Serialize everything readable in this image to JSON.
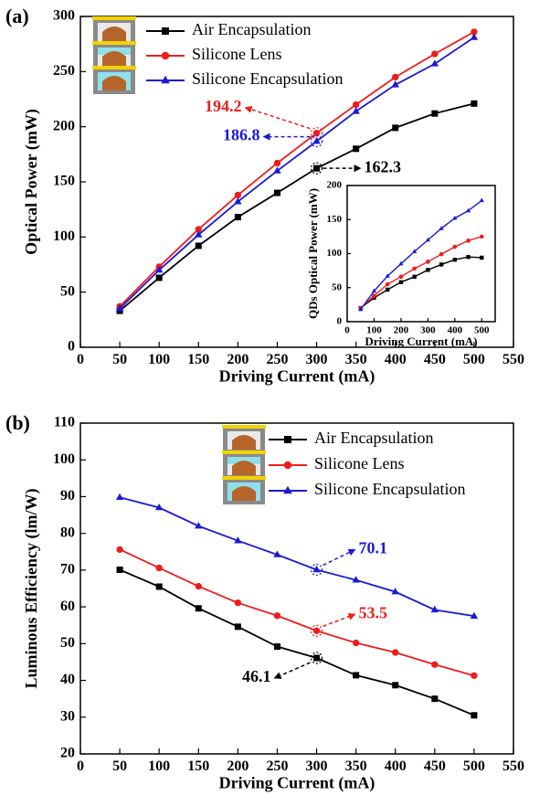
{
  "chart_data": [
    {
      "type": "line",
      "panel_label": "(a)",
      "x_label": "Driving Current (mA)",
      "y_label": "Optical Power (mW)",
      "x": [
        50,
        100,
        150,
        200,
        250,
        300,
        350,
        400,
        450,
        500
      ],
      "series": [
        {
          "name": "Air Encapsulation",
          "color": "#000000",
          "marker": "square",
          "values": [
            33,
            63,
            92,
            118,
            140,
            162.3,
            180,
            199,
            212,
            221
          ]
        },
        {
          "name": "Silicone Lens",
          "color": "#ee1c1c",
          "marker": "circle",
          "values": [
            37,
            73,
            107,
            138,
            167,
            194.2,
            220,
            245,
            266,
            286
          ]
        },
        {
          "name": "Silicone Encapsulation",
          "color": "#1a1ad6",
          "marker": "triangle",
          "values": [
            35,
            70,
            102,
            132,
            160,
            186.8,
            214,
            238,
            257,
            281
          ]
        }
      ],
      "xlim": [
        0,
        550
      ],
      "xticks": [
        0,
        50,
        100,
        150,
        200,
        250,
        300,
        350,
        400,
        450,
        500,
        550
      ],
      "ylim": [
        0,
        300
      ],
      "yticks": [
        0,
        50,
        100,
        150,
        200,
        250,
        300
      ],
      "legend": "upper left"
    },
    {
      "type": "line",
      "x_label": "Driving Current (mA)",
      "y_label": "QDs Optical Power (mW)",
      "x": [
        50,
        100,
        150,
        200,
        250,
        300,
        350,
        400,
        450,
        500
      ],
      "series": [
        {
          "color": "#000000",
          "marker": "square",
          "values": [
            20,
            35,
            47,
            58,
            66,
            76,
            84,
            91,
            95,
            94
          ]
        },
        {
          "color": "#ee1c1c",
          "marker": "circle",
          "values": [
            20,
            38,
            55,
            66,
            78,
            88,
            99,
            110,
            119,
            125
          ]
        },
        {
          "color": "#1a1ad6",
          "marker": "triangle",
          "values": [
            18,
            45,
            67,
            85,
            103,
            120,
            137,
            152,
            163,
            178
          ]
        }
      ],
      "xlim": [
        0,
        550
      ],
      "xticks": [
        0,
        100,
        200,
        300,
        400,
        500
      ],
      "ylim": [
        0,
        200
      ],
      "yticks": [
        0,
        50,
        100,
        150,
        200
      ]
    },
    {
      "type": "line",
      "panel_label": "(b)",
      "x_label": "Driving Current (mA)",
      "y_label": "Luminous Efficiency (lm/W)",
      "x": [
        50,
        100,
        150,
        200,
        250,
        300,
        350,
        400,
        450,
        500
      ],
      "series": [
        {
          "name": "Air Encapsulation",
          "color": "#000000",
          "marker": "square",
          "values": [
            70.1,
            65.5,
            59.6,
            54.6,
            49.2,
            46.1,
            41.4,
            38.7,
            35,
            30.5
          ]
        },
        {
          "name": "Silicone Lens",
          "color": "#ee1c1c",
          "marker": "circle",
          "values": [
            75.6,
            70.6,
            65.6,
            61.1,
            57.6,
            53.5,
            50.2,
            47.6,
            44.3,
            41.3
          ]
        },
        {
          "name": "Silicone Encapsulation",
          "color": "#1a1ad6",
          "marker": "triangle",
          "values": [
            89.8,
            87,
            82,
            78,
            74.2,
            70.1,
            67.3,
            64.1,
            59.2,
            57.5
          ]
        }
      ],
      "xlim": [
        0,
        550
      ],
      "xticks": [
        0,
        50,
        100,
        150,
        200,
        250,
        300,
        350,
        400,
        450,
        500,
        550
      ],
      "ylim": [
        20,
        110
      ],
      "yticks": [
        20,
        30,
        40,
        50,
        60,
        70,
        80,
        90,
        100,
        110
      ],
      "legend": "upper center"
    }
  ]
}
